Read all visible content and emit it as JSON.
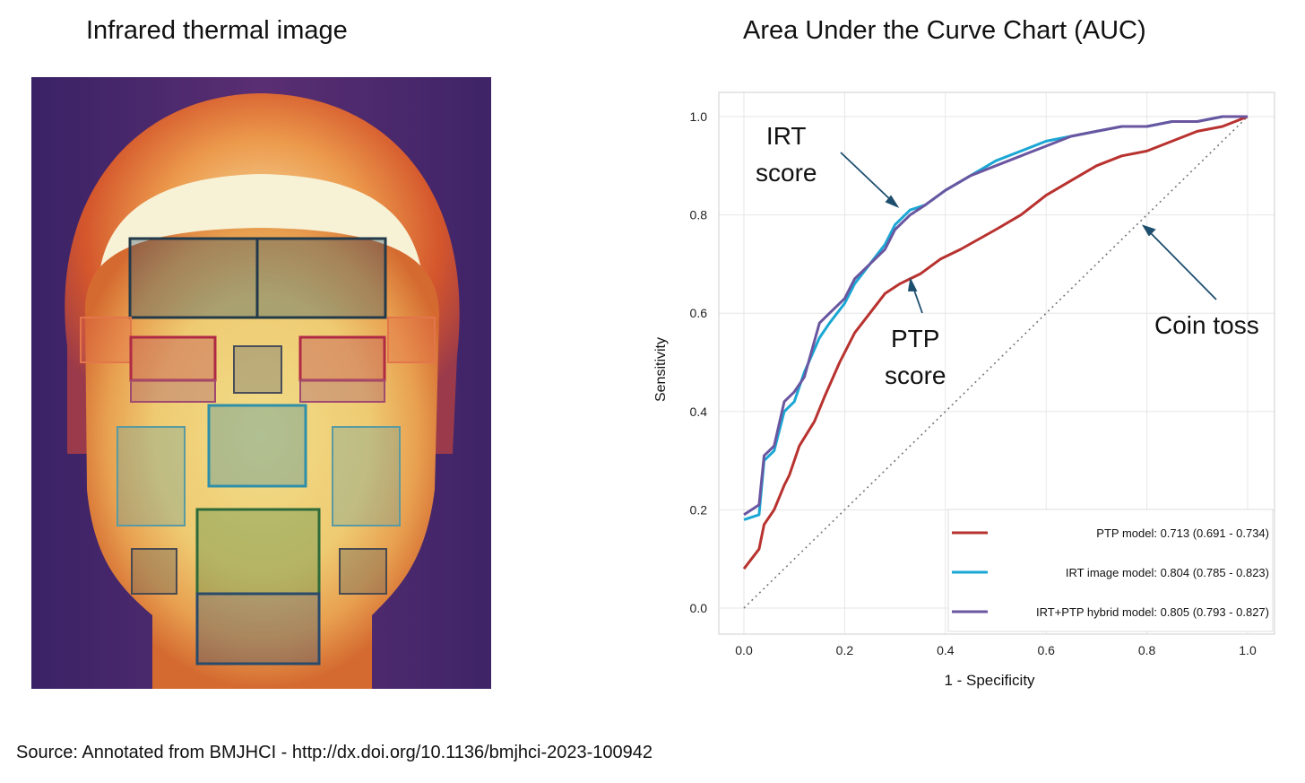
{
  "titles": {
    "left": "Infrared thermal image",
    "right": "Area Under the Curve Chart (AUC)"
  },
  "source": "Source: Annotated from BMJHCI - http://dx.doi.org/10.1136/bmjhci-2023-100942",
  "annotations": {
    "irt_line1": "IRT",
    "irt_line2": "score",
    "ptp_line1": "PTP",
    "ptp_line2": "score",
    "coin": "Coin toss"
  },
  "colors": {
    "ptp": "#b8322f",
    "irt": "#1aa7d4",
    "hybrid": "#6a56a0",
    "arrow": "#1d4e6e"
  },
  "chart_data": {
    "type": "line",
    "xlabel": "1 - Specificity",
    "ylabel": "Sensitivity",
    "xlim": [
      0,
      1
    ],
    "ylim": [
      0,
      1
    ],
    "xticks": [
      "0.0",
      "0.2",
      "0.4",
      "0.6",
      "0.8",
      "1.0"
    ],
    "yticks": [
      "0.0",
      "0.2",
      "0.4",
      "0.6",
      "0.8",
      "1.0"
    ],
    "grid": true,
    "legend_position": "bottom-right",
    "series": [
      {
        "name": "PTP model: 0.713 (0.691 - 0.734)",
        "color": "#b8322f",
        "x": [
          0,
          0.03,
          0.04,
          0.06,
          0.08,
          0.09,
          0.11,
          0.14,
          0.16,
          0.19,
          0.22,
          0.25,
          0.28,
          0.31,
          0.35,
          0.39,
          0.43,
          0.5,
          0.55,
          0.6,
          0.65,
          0.7,
          0.75,
          0.8,
          0.85,
          0.9,
          0.95,
          1.0
        ],
        "y": [
          0.08,
          0.12,
          0.17,
          0.2,
          0.25,
          0.27,
          0.33,
          0.38,
          0.43,
          0.5,
          0.56,
          0.6,
          0.64,
          0.66,
          0.68,
          0.71,
          0.73,
          0.77,
          0.8,
          0.84,
          0.87,
          0.9,
          0.92,
          0.93,
          0.95,
          0.97,
          0.98,
          1.0
        ]
      },
      {
        "name": "IRT image model: 0.804 (0.785 - 0.823)",
        "color": "#1aa7d4",
        "x": [
          0,
          0.03,
          0.04,
          0.06,
          0.08,
          0.1,
          0.12,
          0.15,
          0.17,
          0.2,
          0.22,
          0.25,
          0.28,
          0.3,
          0.33,
          0.36,
          0.4,
          0.45,
          0.5,
          0.55,
          0.6,
          0.65,
          0.7,
          0.75,
          0.8,
          0.85,
          0.9,
          0.95,
          1.0
        ],
        "y": [
          0.18,
          0.19,
          0.3,
          0.32,
          0.4,
          0.42,
          0.48,
          0.55,
          0.58,
          0.62,
          0.66,
          0.7,
          0.74,
          0.78,
          0.81,
          0.82,
          0.85,
          0.88,
          0.91,
          0.93,
          0.95,
          0.96,
          0.97,
          0.98,
          0.98,
          0.99,
          0.99,
          1.0,
          1.0
        ]
      },
      {
        "name": "IRT+PTP hybrid model: 0.805 (0.793 - 0.827)",
        "color": "#6a56a0",
        "x": [
          0,
          0.03,
          0.04,
          0.06,
          0.08,
          0.1,
          0.12,
          0.15,
          0.17,
          0.2,
          0.22,
          0.25,
          0.28,
          0.3,
          0.33,
          0.36,
          0.4,
          0.45,
          0.5,
          0.55,
          0.6,
          0.65,
          0.7,
          0.75,
          0.8,
          0.85,
          0.9,
          0.95,
          1.0
        ],
        "y": [
          0.19,
          0.21,
          0.31,
          0.33,
          0.42,
          0.44,
          0.47,
          0.58,
          0.6,
          0.63,
          0.67,
          0.7,
          0.73,
          0.77,
          0.8,
          0.82,
          0.85,
          0.88,
          0.9,
          0.92,
          0.94,
          0.96,
          0.97,
          0.98,
          0.98,
          0.99,
          0.99,
          1.0,
          1.0
        ]
      }
    ],
    "reference": {
      "x": [
        0,
        1
      ],
      "y": [
        0,
        1
      ]
    }
  }
}
